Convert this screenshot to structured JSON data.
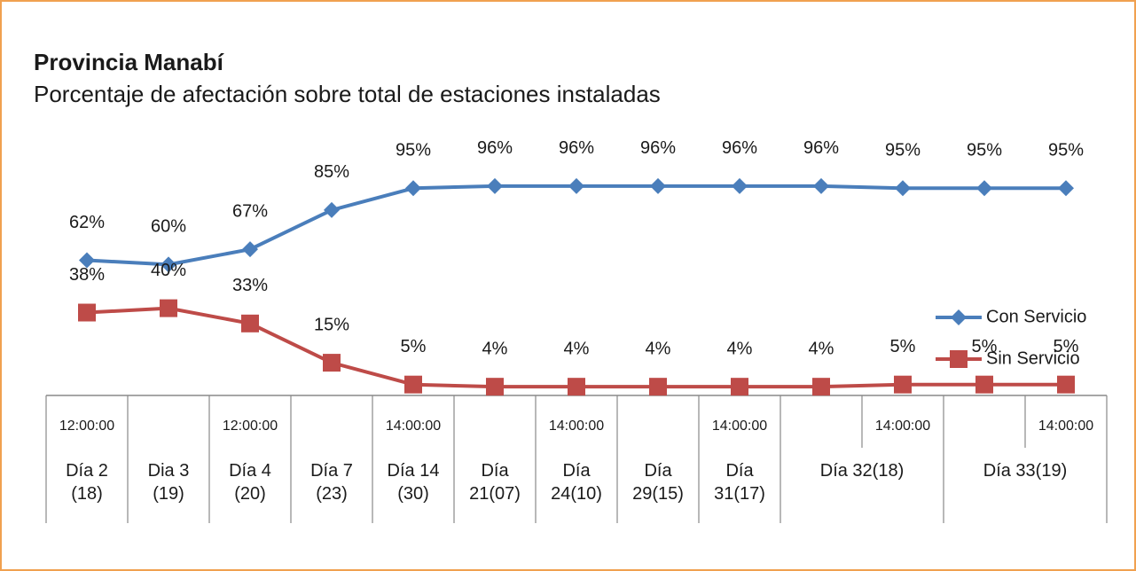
{
  "chart_data": {
    "type": "line",
    "title": "Provincia Manabí",
    "subtitle": "Porcentaje de afectación sobre total de estaciones instaladas",
    "categories": [
      "12:00:00",
      null,
      "12:00:00",
      null,
      "14:00:00",
      null,
      "14:00:00",
      null,
      "14:00:00",
      null,
      "14:00:00",
      null,
      "14:00:00"
    ],
    "category_groups": [
      {
        "label": "Día 2 (18)",
        "span": 1
      },
      {
        "label": "Dia 3 (19)",
        "span": 1
      },
      {
        "label": "Día 4 (20)",
        "span": 1
      },
      {
        "label": "Día 7 (23)",
        "span": 1
      },
      {
        "label": "Día 14 (30)",
        "span": 1
      },
      {
        "label": "Día 21(07)",
        "span": 1
      },
      {
        "label": "Día 24(10)",
        "span": 1
      },
      {
        "label": "Día 29(15)",
        "span": 1
      },
      {
        "label": "Día 31(17)",
        "span": 1
      },
      {
        "label": "Día 32(18)",
        "span": 2
      },
      {
        "label": "Día 33(19)",
        "span": 2
      }
    ],
    "ylim": [
      0,
      100
    ],
    "legend": "right",
    "series": [
      {
        "name": "Con Servicio",
        "color": "#4a7ebb",
        "marker": "diamond",
        "values": [
          62,
          60,
          67,
          85,
          95,
          96,
          96,
          96,
          96,
          96,
          95,
          95,
          95
        ],
        "value_labels": [
          "62%",
          "60%",
          "67%",
          "85%",
          "95%",
          "96%",
          "96%",
          "96%",
          "96%",
          "96%",
          "95%",
          "95%",
          "95%"
        ]
      },
      {
        "name": "Sin Servicio",
        "color": "#be4b48",
        "marker": "square",
        "values": [
          38,
          40,
          33,
          15,
          5,
          4,
          4,
          4,
          4,
          4,
          5,
          5,
          5
        ],
        "value_labels": [
          "38%",
          "40%",
          "33%",
          "15%",
          "5%",
          "4%",
          "4%",
          "4%",
          "4%",
          "4%",
          "5%",
          "5%",
          "5%"
        ]
      }
    ]
  }
}
